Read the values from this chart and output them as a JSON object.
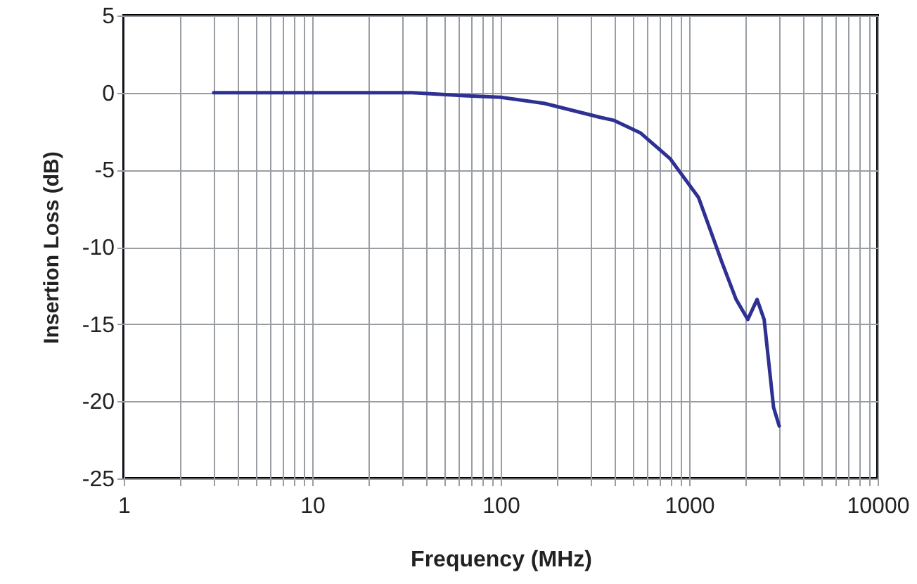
{
  "chart_data": {
    "type": "line",
    "xlabel": "Frequency (MHz)",
    "ylabel": "Insertion Loss (dB)",
    "log": "x",
    "xlim": [
      1,
      10000
    ],
    "ylim": [
      -25,
      5
    ],
    "xticks": [
      1,
      {
        "value": 2,
        "label": null
      },
      {
        "value": 3,
        "label": null
      },
      {
        "value": 4,
        "label": null
      },
      {
        "value": 5,
        "label": null
      },
      {
        "value": 6,
        "label": null
      },
      {
        "value": 7,
        "label": null
      },
      {
        "value": 8,
        "label": null
      },
      {
        "value": 9,
        "label": null
      },
      10,
      {
        "value": 20,
        "label": null
      },
      {
        "value": 30,
        "label": null
      },
      {
        "value": 40,
        "label": null
      },
      {
        "value": 50,
        "label": null
      },
      {
        "value": 60,
        "label": null
      },
      {
        "value": 70,
        "label": null
      },
      {
        "value": 80,
        "label": null
      },
      {
        "value": 90,
        "label": null
      },
      100,
      {
        "value": 200,
        "label": null
      },
      {
        "value": 300,
        "label": null
      },
      {
        "value": 400,
        "label": null
      },
      {
        "value": 500,
        "label": null
      },
      {
        "value": 600,
        "label": null
      },
      {
        "value": 700,
        "label": null
      },
      {
        "value": 800,
        "label": null
      },
      {
        "value": 900,
        "label": null
      },
      1000,
      {
        "value": 2000,
        "label": null
      },
      {
        "value": 3000,
        "label": null
      },
      {
        "value": 4000,
        "label": null
      },
      {
        "value": 5000,
        "label": null
      },
      {
        "value": 6000,
        "label": null
      },
      {
        "value": 7000,
        "label": null
      },
      {
        "value": 8000,
        "label": null
      },
      {
        "value": 9000,
        "label": null
      },
      10000
    ],
    "yticks": [
      -25,
      -20,
      -15,
      -10,
      -5,
      0,
      5
    ],
    "grid": true,
    "series": [
      {
        "color": "#2e3192",
        "x": [
          3,
          10,
          34,
          64,
          100,
          171,
          337,
          400,
          550,
          795,
          1122,
          1493,
          1775,
          2046,
          2293,
          2500,
          2805,
          3006
        ],
        "values": [
          0,
          0,
          0,
          -0.2,
          -0.3,
          -0.7,
          -1.6,
          -1.8,
          -2.6,
          -4.3,
          -6.8,
          -11.0,
          -13.4,
          -14.7,
          -13.4,
          -14.7,
          -20.4,
          -21.6
        ]
      }
    ]
  }
}
